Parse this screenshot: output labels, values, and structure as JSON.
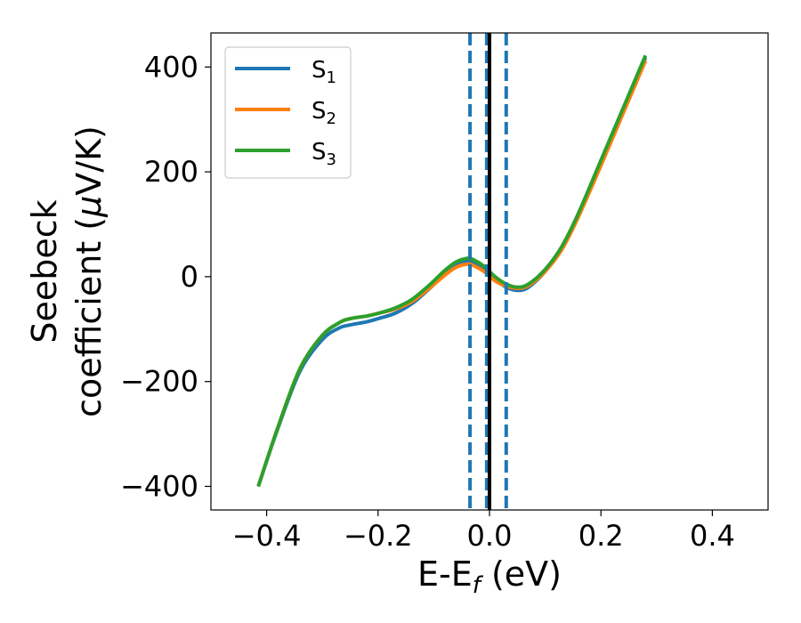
{
  "chart_data": {
    "type": "line",
    "xlabel": "E-E",
    "xlabel_sub": "f",
    "xlabel_unit": " (eV)",
    "ylabel_line1": "Seebeck",
    "ylabel_line2": "coefficient  (",
    "ylabel_mu": "μ",
    "ylabel_unit": "V/K)",
    "xlim": [
      -0.5,
      0.5
    ],
    "ylim": [
      -445,
      465
    ],
    "xticks": [
      -0.4,
      -0.2,
      0.0,
      0.2,
      0.4
    ],
    "xtick_labels": [
      "−0.4",
      "−0.2",
      "0.0",
      "0.2",
      "0.4"
    ],
    "yticks": [
      -400,
      -200,
      0,
      200,
      400
    ],
    "ytick_labels": [
      "−400",
      "−200",
      "0",
      "200",
      "400"
    ],
    "grid": false,
    "legend_position": "top-left",
    "vlines": [
      {
        "x": -0.035,
        "style": "dashed",
        "color": "#1f77b4"
      },
      {
        "x": -0.005,
        "style": "dashed",
        "color": "#1f77b4"
      },
      {
        "x": 0.0,
        "style": "solid",
        "color": "#000000"
      },
      {
        "x": 0.03,
        "style": "dashed",
        "color": "#1f77b4"
      }
    ],
    "series": [
      {
        "name": "S",
        "name_sub": "1",
        "color": "#1f77b4",
        "x": [
          -0.415,
          -0.38,
          -0.34,
          -0.3,
          -0.27,
          -0.25,
          -0.22,
          -0.2,
          -0.17,
          -0.14,
          -0.11,
          -0.08,
          -0.06,
          -0.04,
          -0.03,
          -0.01,
          0.01,
          0.03,
          0.05,
          0.07,
          0.1,
          0.13,
          0.16,
          0.2,
          0.24,
          0.28
        ],
        "values": [
          -400,
          -290,
          -180,
          -120,
          -98,
          -92,
          -86,
          -80,
          -70,
          -52,
          -25,
          5,
          22,
          30,
          28,
          15,
          -5,
          -20,
          -26,
          -20,
          10,
          55,
          120,
          220,
          320,
          418
        ]
      },
      {
        "name": "S",
        "name_sub": "2",
        "color": "#ff7f0e",
        "x": [
          -0.415,
          -0.38,
          -0.34,
          -0.3,
          -0.27,
          -0.25,
          -0.22,
          -0.2,
          -0.17,
          -0.14,
          -0.11,
          -0.08,
          -0.06,
          -0.04,
          -0.03,
          -0.01,
          0.01,
          0.03,
          0.05,
          0.07,
          0.1,
          0.13,
          0.16,
          0.2,
          0.24,
          0.28
        ],
        "values": [
          -400,
          -288,
          -175,
          -112,
          -88,
          -80,
          -75,
          -70,
          -62,
          -48,
          -24,
          3,
          18,
          24,
          22,
          10,
          -8,
          -18,
          -22,
          -17,
          10,
          52,
          115,
          212,
          312,
          412
        ]
      },
      {
        "name": "S",
        "name_sub": "3",
        "color": "#2ca02c",
        "x": [
          -0.415,
          -0.38,
          -0.34,
          -0.3,
          -0.27,
          -0.25,
          -0.22,
          -0.2,
          -0.17,
          -0.14,
          -0.11,
          -0.08,
          -0.06,
          -0.04,
          -0.03,
          -0.01,
          0.01,
          0.03,
          0.05,
          0.07,
          0.1,
          0.13,
          0.16,
          0.2,
          0.24,
          0.28
        ],
        "values": [
          -400,
          -288,
          -175,
          -112,
          -88,
          -80,
          -75,
          -70,
          -60,
          -44,
          -18,
          12,
          28,
          35,
          33,
          20,
          0,
          -14,
          -20,
          -14,
          14,
          58,
          122,
          222,
          322,
          422
        ]
      }
    ]
  }
}
